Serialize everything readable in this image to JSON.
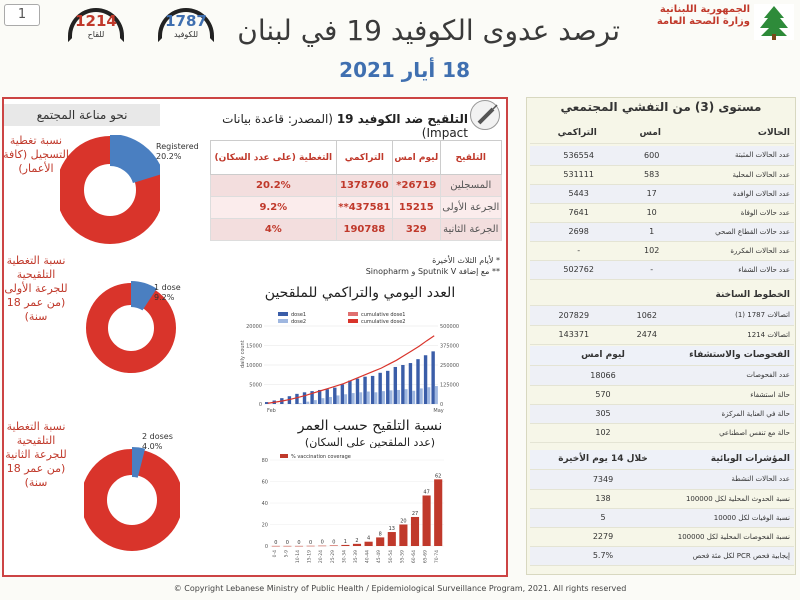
{
  "page_number": "1",
  "header": {
    "title": "ترصد عدوى الكوفيد 19 في لبنان",
    "date": "18 أيار 2021",
    "ministry_line1": "الجمهورية اللبنانية",
    "ministry_line2": "وزارة الصحة العامة",
    "hotline_1787": {
      "number": "1787",
      "caption": "للكوفيد"
    },
    "hotline_1214": {
      "number": "1214",
      "caption": "للقاح"
    }
  },
  "immunity": {
    "banner": "نحو مناعة المجتمع",
    "donuts": [
      {
        "caption": "نسبة تغطية التسجيل (كافة الأعمار)",
        "label_en": "Registered",
        "value_text": "20.2%",
        "value": 20.2
      },
      {
        "caption": "نسبة التغطية التلقيحية للجرعة الأولى (من عمر 18 سنة)",
        "label_en": "1 dose",
        "value_text": "9.2%",
        "value": 9.2
      },
      {
        "caption": "نسبة التغطية التلقيحية للجرعة الثانية (من عمر 18 سنة)",
        "label_en": "2 doses",
        "value_text": "4.0%",
        "value": 4.0
      }
    ],
    "colors": {
      "filled": "#4a7fc1",
      "remaining": "#d9342b"
    }
  },
  "vaccination": {
    "title_bold": "التلقيح ضد الكوفيد 19",
    "title_rest": "(المصدر: قاعدة بيانات Impact)",
    "headers": [
      "التلقيح",
      "ليوم امس",
      "التراكمي",
      "التغطية (على عدد السكان)"
    ],
    "rows": [
      {
        "label": "المسجلين",
        "yesterday": "26719*",
        "cumulative": "1378760",
        "coverage": "20.2%"
      },
      {
        "label": "الجرعة الأولى",
        "yesterday": "15215",
        "cumulative": "437581**",
        "coverage": "9.2%"
      },
      {
        "label": "الجرعة الثانية",
        "yesterday": "329",
        "cumulative": "190788",
        "coverage": "4%"
      }
    ],
    "note1": "* لأيام الثلاث الأخيرة",
    "note2": "** مع إضافة Sputnik V و Sinopharm"
  },
  "daily_chart": {
    "title": "العدد اليومي والتراكمي للملقحين",
    "legend": [
      "dose1",
      "cumulative dose1",
      "dose2",
      "cumulative dose2"
    ],
    "ylabel_left": "daily count",
    "ylabel_right": "cumulative count"
  },
  "age_chart": {
    "title": "نسبة التلقيح حسب العمر",
    "subtitle": "(عدد الملقحين على السكان)",
    "legend": "% vaccination coverage"
  },
  "chart_data": [
    {
      "type": "bar",
      "title": "العدد اليومي والتراكمي للملقحين",
      "ylabel": "daily count",
      "ylim": [
        0,
        20000
      ],
      "y2lim": [
        0,
        500000
      ],
      "categories": [
        "Feb",
        "",
        "",
        "",
        "",
        "",
        "",
        "",
        "",
        "",
        "",
        "",
        "",
        "",
        "",
        "",
        "",
        "",
        "",
        "",
        "",
        "",
        "May"
      ],
      "series": [
        {
          "name": "dose1",
          "values": [
            500,
            900,
            1500,
            2000,
            2600,
            3000,
            3300,
            3600,
            3800,
            4200,
            5000,
            6000,
            6500,
            7000,
            7200,
            8000,
            8500,
            9500,
            10000,
            10500,
            11500,
            12500,
            13500
          ]
        },
        {
          "name": "dose2",
          "values": [
            0,
            0,
            0,
            0,
            200,
            600,
            1000,
            1500,
            1800,
            2200,
            2500,
            2800,
            3000,
            3200,
            3000,
            3300,
            3500,
            3600,
            3800,
            3400,
            4000,
            4300,
            4600
          ]
        },
        {
          "name": "cumulative dose1",
          "values": [
            5000,
            12000,
            20000,
            30000,
            42000,
            55000,
            70000,
            85000,
            100000,
            115000,
            130000,
            150000,
            170000,
            190000,
            210000,
            230000,
            255000,
            280000,
            310000,
            340000,
            370000,
            405000,
            437581
          ]
        }
      ],
      "legend": "top"
    },
    {
      "type": "bar",
      "title": "نسبة التلقيح حسب العمر",
      "series": [
        {
          "name": "% vaccination coverage",
          "values": [
            0.1,
            0.1,
            0.1,
            0.2,
            0.3,
            0.5,
            1,
            2,
            4,
            8,
            13,
            20,
            27,
            47,
            62
          ]
        }
      ],
      "categories": [
        "0-4",
        "5-9",
        "10-14",
        "15-19",
        "20-24",
        "25-29",
        "30-34",
        "35-39",
        "40-44",
        "45-49",
        "50-54",
        "55-59",
        "60-64",
        "65-69",
        "70-74"
      ],
      "data_labels": [
        "0",
        "0",
        "0",
        "0",
        "0",
        "0",
        "1",
        "2",
        "4",
        "8",
        "13",
        "20",
        "27",
        "47",
        "62"
      ],
      "ylim": [
        0,
        80
      ]
    }
  ],
  "community": {
    "title": "مستوى (3) من التفشي المجتمعي",
    "cases_header": "الحالات",
    "col_yesterday": "امس",
    "col_cumulative": "التراكمي",
    "case_rows": [
      {
        "label": "عدد الحالات المثبتة",
        "yesterday": "600",
        "cumulative": "536554"
      },
      {
        "label": "عدد الحالات المحلية",
        "yesterday": "583",
        "cumulative": "531111"
      },
      {
        "label": "عدد الحالات الوافدة",
        "yesterday": "17",
        "cumulative": "5443"
      },
      {
        "label": "عدد حالات الوفاة",
        "yesterday": "10",
        "cumulative": "7641"
      },
      {
        "label": "عدد حالات القطاع الصحي",
        "yesterday": "1",
        "cumulative": "2698"
      },
      {
        "label": "عدد الحالات المكررة",
        "yesterday": "102",
        "cumulative": "-"
      },
      {
        "label": "عدد حالات الشفاء",
        "yesterday": "-",
        "cumulative": "502762"
      }
    ],
    "hotlines_header": "الخطوط الساخنة",
    "hotline_rows": [
      {
        "label": "اتصالات 1787 (1)",
        "yesterday": "1062",
        "cumulative": "207829"
      },
      {
        "label": "اتصالات 1214",
        "yesterday": "2474",
        "cumulative": "143371"
      }
    ],
    "tests_header": "الفحوصات والاستشفاء",
    "tests_col": "ليوم امس",
    "test_rows": [
      {
        "label": "عدد الفحوصات",
        "value": "18066"
      },
      {
        "label": "حالة استشفاء",
        "value": "570"
      },
      {
        "label": "حالة في العناية المركزة",
        "value": "305"
      },
      {
        "label": "حالة مع تنفس اصطناعي",
        "value": "102"
      }
    ],
    "indicators_header": "المؤشرات الوبائية",
    "indicators_col": "خلال 14 يوم الأخيرة",
    "indicator_rows": [
      {
        "label": "عدد الحالات النشطة",
        "value": "7349"
      },
      {
        "label": "نسبة الحدوث المحلية لكل 100000",
        "value": "138"
      },
      {
        "label": "نسبة الوفيات لكل 10000",
        "value": "5"
      },
      {
        "label": "نسبة الفحوصات المحلية لكل 100000",
        "value": "2279"
      },
      {
        "label": "إيجابية فحص PCR لكل مئة فحص",
        "value": "5.7%"
      }
    ]
  },
  "footer": "© Copyright Lebanese Ministry of Public Health / Epidemiological Surveillance Program, 2021. All rights reserved"
}
